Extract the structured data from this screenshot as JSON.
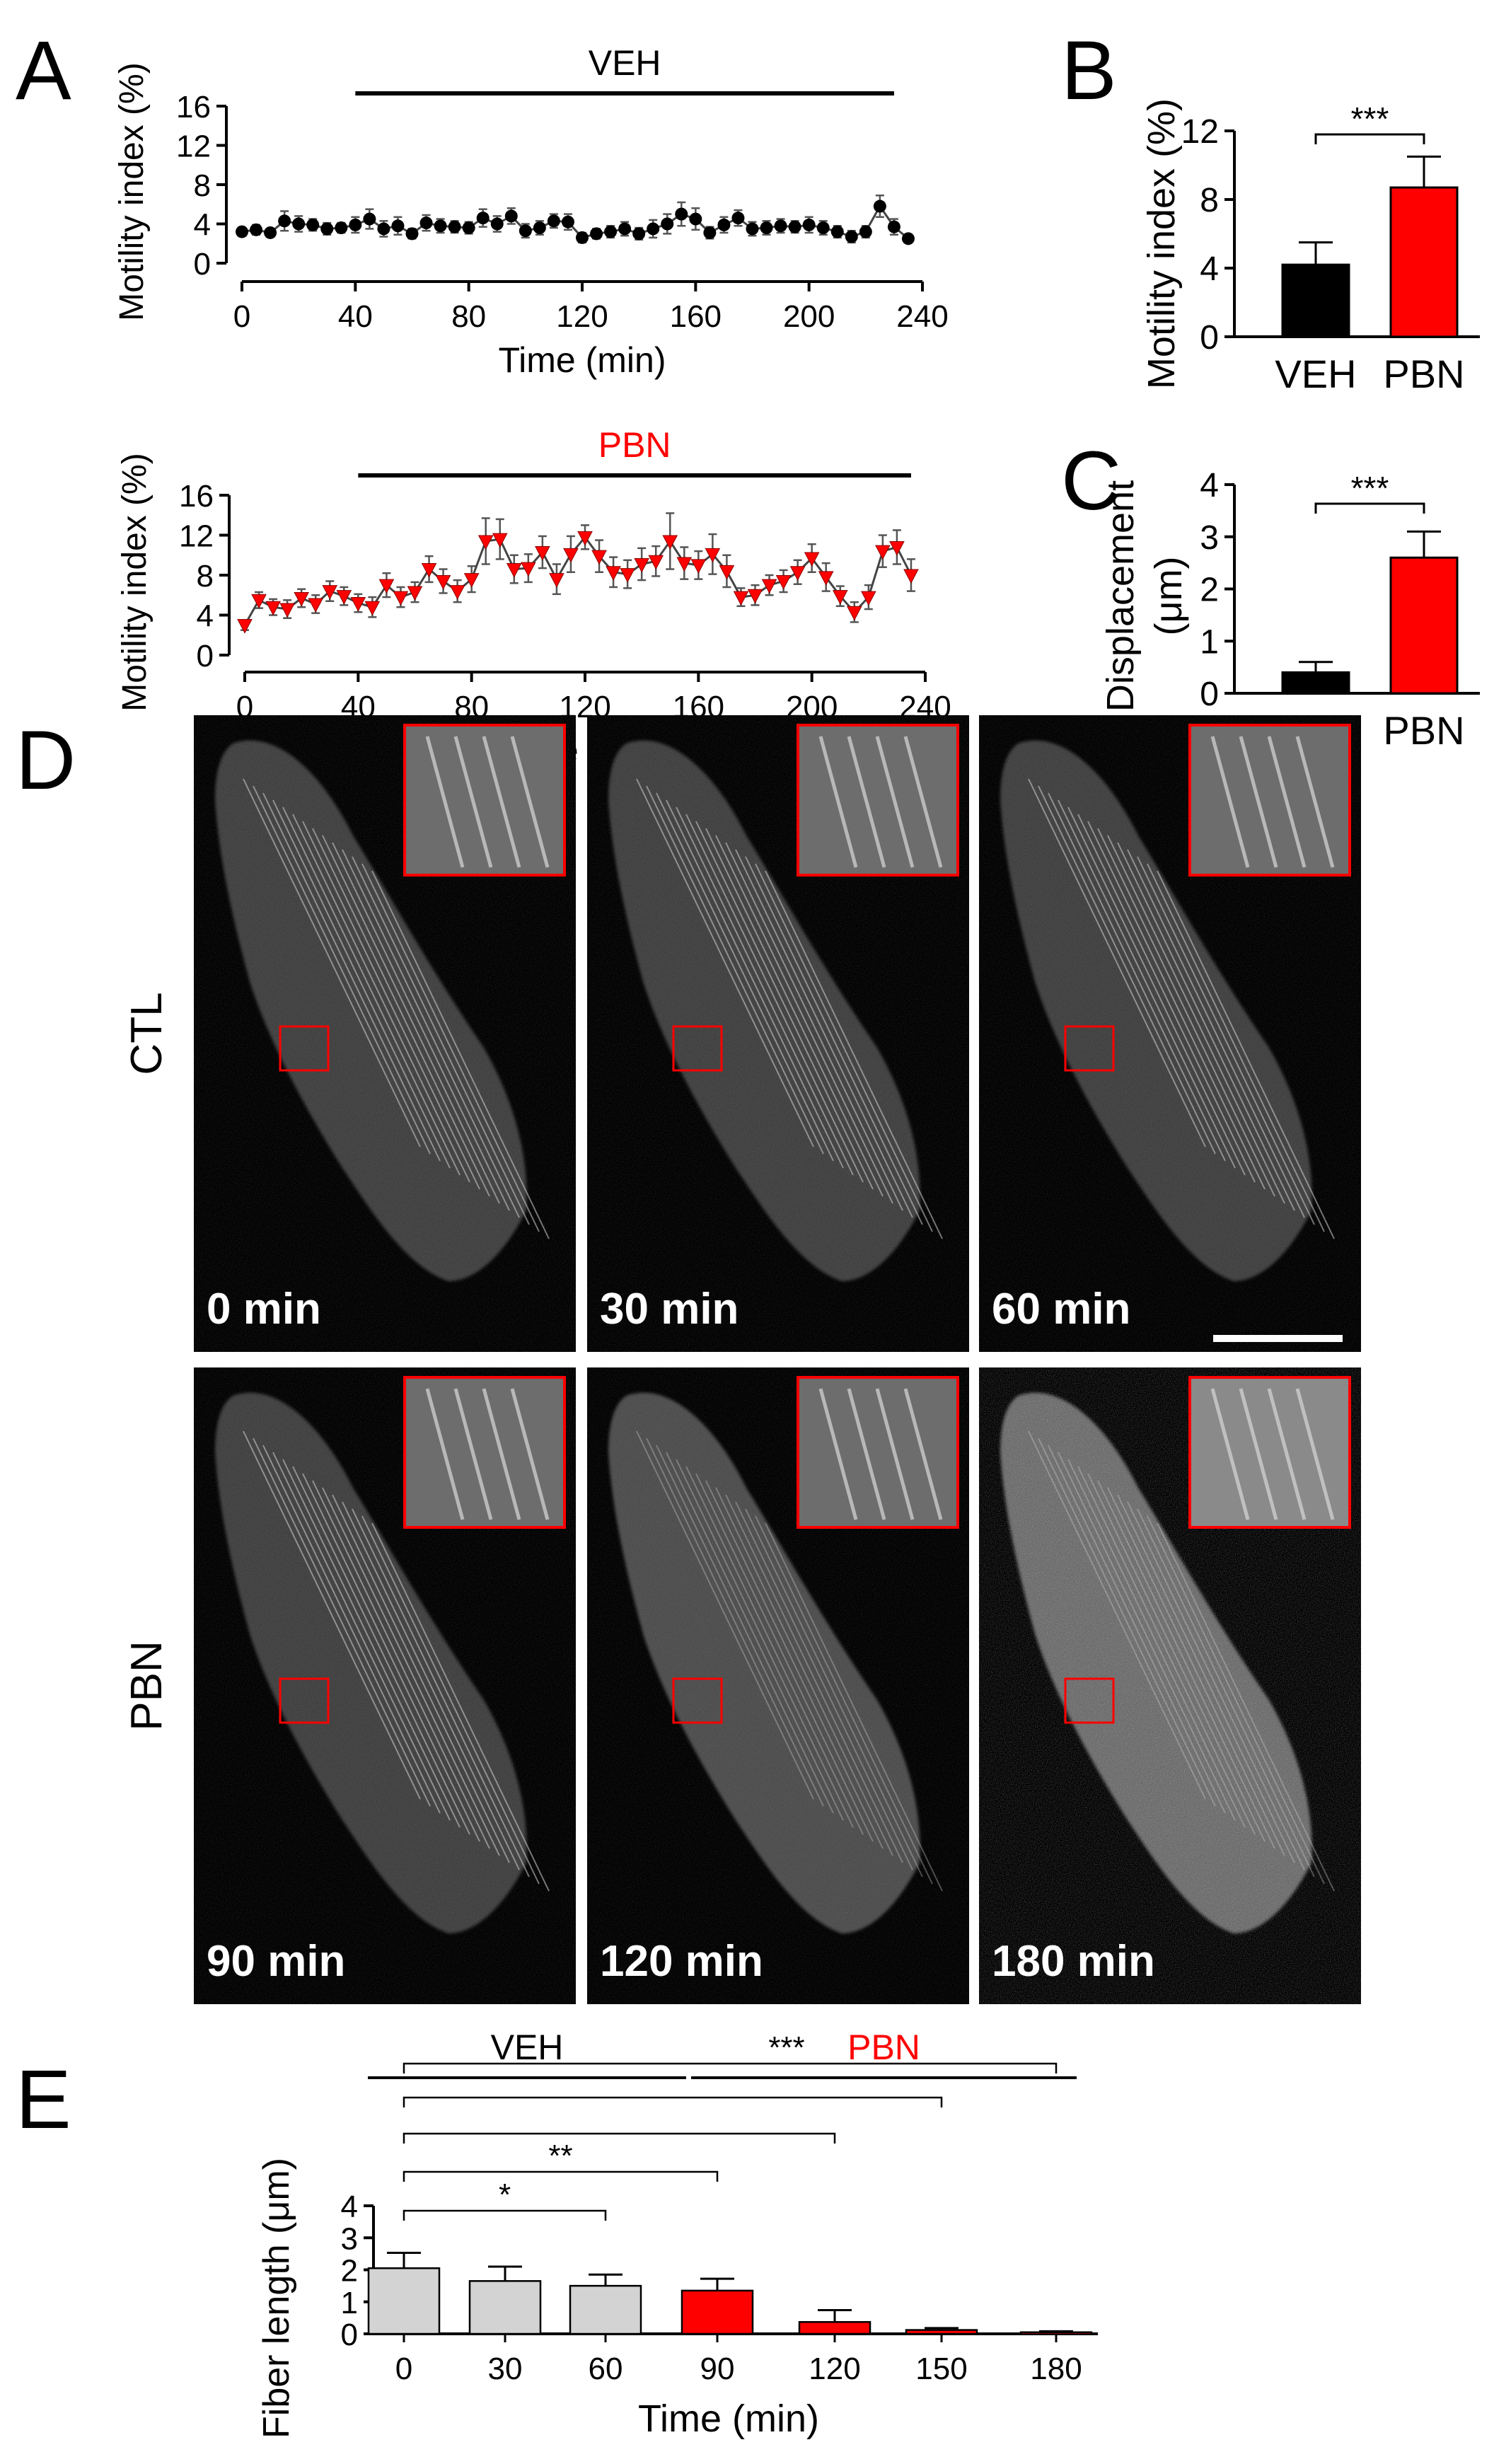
{
  "panel_letters": [
    "A",
    "B",
    "C",
    "D",
    "E"
  ],
  "colors": {
    "veh": "#000000",
    "pbn": "#ff0000",
    "ctl_bar": "#d3d3d3",
    "image_bg": "#000000",
    "inset_border": "#ff0000"
  },
  "panel_d": {
    "row_labels": [
      "CTL",
      "PBN"
    ],
    "timepoints": [
      "0 min",
      "30 min",
      "60 min",
      "90 min",
      "120 min",
      "180 min"
    ],
    "scale_bar": true
  },
  "chart_data": [
    {
      "id": "A-top",
      "type": "line",
      "treatment_label": "VEH",
      "treatment_range": [
        40,
        230
      ],
      "xlabel": "Time (min)",
      "ylabel": "Motility index (%)",
      "xlim": [
        0,
        240
      ],
      "ylim": [
        0,
        16
      ],
      "xticks": [
        0,
        40,
        80,
        120,
        160,
        200,
        240
      ],
      "yticks": [
        0,
        4,
        8,
        12,
        16
      ],
      "series": [
        {
          "color": "#000000",
          "marker": "circle",
          "x": [
            0,
            5,
            10,
            15,
            20,
            25,
            30,
            35,
            40,
            45,
            50,
            55,
            60,
            65,
            70,
            75,
            80,
            85,
            90,
            95,
            100,
            105,
            110,
            115,
            120,
            125,
            130,
            135,
            140,
            145,
            150,
            155,
            160,
            165,
            170,
            175,
            180,
            185,
            190,
            195,
            200,
            205,
            210,
            215,
            220,
            225,
            230,
            235
          ],
          "y": [
            3.2,
            3.4,
            3.1,
            4.3,
            4.0,
            3.9,
            3.5,
            3.6,
            3.9,
            4.5,
            3.5,
            3.8,
            3.0,
            4.1,
            3.8,
            3.7,
            3.6,
            4.6,
            4.0,
            4.8,
            3.3,
            3.6,
            4.3,
            4.2,
            2.6,
            3.0,
            3.2,
            3.5,
            3.0,
            3.5,
            4.0,
            5.0,
            4.5,
            3.1,
            3.9,
            4.6,
            3.5,
            3.6,
            3.8,
            3.7,
            3.9,
            3.6,
            3.2,
            2.7,
            3.2,
            5.8,
            3.7,
            2.5
          ],
          "err": [
            0.4,
            0.5,
            0.4,
            1.0,
            0.8,
            0.6,
            0.6,
            0.5,
            0.8,
            1.0,
            0.8,
            0.9,
            0.5,
            0.8,
            0.7,
            0.6,
            0.6,
            0.9,
            0.8,
            0.8,
            0.7,
            0.7,
            0.7,
            0.8,
            0.5,
            0.5,
            0.6,
            0.7,
            0.6,
            0.9,
            1.0,
            1.2,
            1.1,
            0.6,
            0.8,
            0.8,
            0.7,
            0.7,
            0.7,
            0.6,
            0.8,
            0.7,
            0.6,
            0.6,
            0.6,
            1.1,
            0.8,
            0.4
          ]
        }
      ]
    },
    {
      "id": "A-bottom",
      "type": "line",
      "treatment_label": "PBN",
      "treatment_range": [
        40,
        235
      ],
      "xlabel": "Time (min)",
      "ylabel": "Motility index (%)",
      "xlim": [
        0,
        240
      ],
      "ylim": [
        0,
        16
      ],
      "xticks": [
        0,
        40,
        80,
        120,
        160,
        200,
        240
      ],
      "yticks": [
        0,
        4,
        8,
        12,
        16
      ],
      "series": [
        {
          "color": "#ff0000",
          "marker": "triangle-down",
          "x": [
            0,
            5,
            10,
            15,
            20,
            25,
            30,
            35,
            40,
            45,
            50,
            55,
            60,
            65,
            70,
            75,
            80,
            85,
            90,
            95,
            100,
            105,
            110,
            115,
            120,
            125,
            130,
            135,
            140,
            145,
            150,
            155,
            160,
            165,
            170,
            175,
            180,
            185,
            190,
            195,
            200,
            205,
            210,
            215,
            220,
            225,
            230,
            235
          ],
          "y": [
            3.0,
            5.5,
            4.8,
            4.6,
            5.7,
            5.1,
            6.4,
            5.9,
            5.2,
            4.8,
            7.0,
            5.8,
            6.3,
            8.6,
            7.4,
            6.4,
            7.6,
            11.4,
            11.6,
            8.6,
            8.7,
            10.3,
            7.6,
            10.1,
            11.8,
            9.9,
            8.3,
            8.1,
            9.1,
            9.4,
            11.4,
            9.2,
            9.0,
            10.1,
            8.4,
            5.8,
            6.0,
            7.0,
            7.4,
            8.3,
            9.7,
            7.8,
            5.9,
            4.3,
            5.8,
            10.4,
            10.8,
            8.0
          ],
          "err": [
            0.5,
            0.8,
            0.8,
            0.9,
            0.9,
            0.9,
            1.0,
            0.9,
            0.9,
            1.0,
            1.2,
            1.0,
            1.0,
            1.3,
            1.2,
            1.1,
            1.3,
            2.3,
            2.0,
            1.4,
            1.4,
            1.6,
            1.5,
            1.8,
            1.2,
            1.6,
            1.5,
            1.4,
            1.6,
            1.5,
            2.8,
            1.6,
            1.4,
            2.0,
            1.6,
            0.9,
            1.0,
            1.0,
            1.1,
            1.2,
            1.4,
            1.4,
            1.0,
            1.0,
            1.2,
            1.6,
            1.7,
            1.6
          ]
        }
      ]
    },
    {
      "id": "B",
      "type": "bar",
      "categories": [
        "VEH",
        "PBN"
      ],
      "values": [
        4.2,
        8.7
      ],
      "err": [
        1.3,
        1.8
      ],
      "colors": [
        "#000000",
        "#ff0000"
      ],
      "ylabel": "Motility index (%)",
      "ylim": [
        0,
        12
      ],
      "yticks": [
        0,
        4,
        8,
        12
      ],
      "significance": [
        {
          "from": 0,
          "to": 1,
          "label": "***"
        }
      ]
    },
    {
      "id": "C",
      "type": "bar",
      "categories": [
        "VEH",
        "PBN"
      ],
      "values": [
        0.4,
        2.6
      ],
      "err": [
        0.2,
        0.5
      ],
      "colors": [
        "#000000",
        "#ff0000"
      ],
      "ylabel": "Displacement (μm)",
      "ylabel_lines": [
        "Displacement",
        "(μm)"
      ],
      "ylim": [
        0,
        4
      ],
      "yticks": [
        0,
        1,
        2,
        3,
        4
      ],
      "significance": [
        {
          "from": 0,
          "to": 1,
          "label": "***"
        }
      ]
    },
    {
      "id": "E",
      "type": "bar",
      "categories": [
        "0",
        "30",
        "60",
        "90",
        "120",
        "150",
        "180"
      ],
      "values": [
        2.05,
        1.65,
        1.5,
        1.35,
        0.37,
        0.12,
        0.05
      ],
      "err": [
        0.48,
        0.45,
        0.35,
        0.37,
        0.37,
        0.06,
        0.03
      ],
      "colors": [
        "#d3d3d3",
        "#d3d3d3",
        "#d3d3d3",
        "#ff0000",
        "#ff0000",
        "#ff0000",
        "#ff0000"
      ],
      "xlabel": "Time (min)",
      "ylabel": "Fiber length (μm)",
      "ylim": [
        0,
        4
      ],
      "yticks": [
        0,
        1,
        2,
        3,
        4
      ],
      "groups": [
        {
          "label": "VEH",
          "from": 0,
          "to": 3,
          "color": "#000000"
        },
        {
          "label": "PBN",
          "from": 3,
          "to": 6,
          "color": "#ff0000"
        }
      ],
      "significance": [
        {
          "from": 0,
          "to": 2,
          "label": "*"
        },
        {
          "from": 0,
          "to": 3,
          "label": "**"
        },
        {
          "from": 0,
          "to": 4,
          "label": ""
        },
        {
          "from": 0,
          "to": 5,
          "label": ""
        },
        {
          "from": 0,
          "to": 6,
          "label": "***"
        }
      ]
    }
  ]
}
